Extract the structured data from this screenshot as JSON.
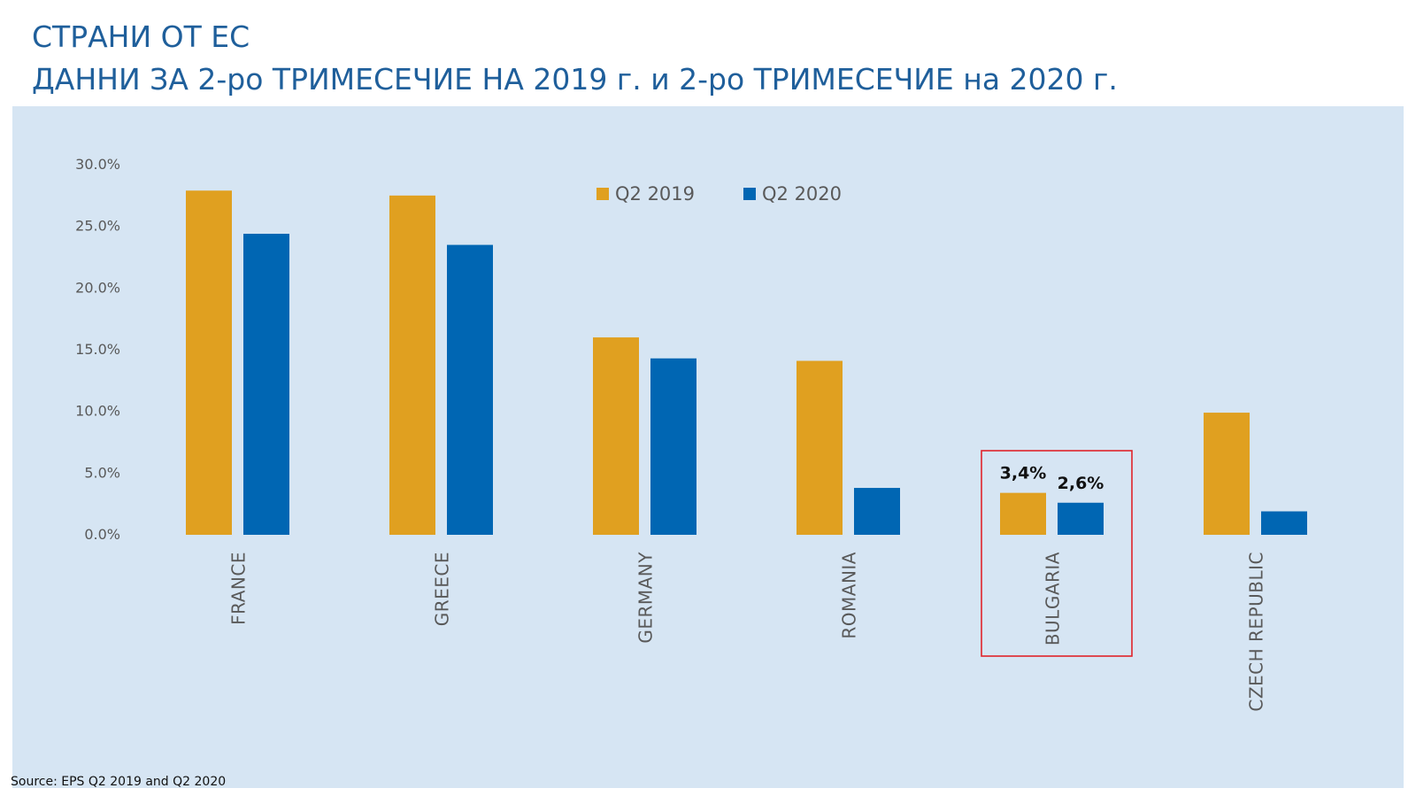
{
  "header": {
    "title_line_1": "СТРАНИ ОТ ЕС",
    "title_line_2": "ДАННИ ЗА 2-ро ТРИМЕСЕЧИЕ НА 2019 г. и 2-ро ТРИМЕСЕЧИЕ на 2020 г."
  },
  "footer": {
    "source": "Source: EPS Q2 2019 and Q2 2020"
  },
  "colors": {
    "title": "#1f5f9b",
    "panel_background": "#d6e5f3",
    "series_q2_2019": "#e0a020",
    "series_q2_2020": "#0066b3",
    "highlight_box": "#e0242a"
  },
  "chart_data": {
    "type": "bar",
    "categories": [
      "FRANCE",
      "GREECE",
      "GERMANY",
      "ROMANIA",
      "BULGARIA",
      "CZECH REPUBLIC"
    ],
    "series": [
      {
        "name": "Q2 2019",
        "color": "#e0a020",
        "values": [
          27.9,
          27.5,
          16.0,
          14.1,
          3.4,
          9.9
        ]
      },
      {
        "name": "Q2 2020",
        "color": "#0066b3",
        "values": [
          24.4,
          23.5,
          14.3,
          3.8,
          2.6,
          1.9
        ]
      }
    ],
    "yticks": [
      "0.0%",
      "5.0%",
      "10.0%",
      "15.0%",
      "20.0%",
      "25.0%",
      "30.0%"
    ],
    "ylim": [
      0,
      30
    ],
    "grid": false,
    "legend_position": "top-center",
    "annotations": [
      {
        "category": "BULGARIA",
        "series": "Q2 2019",
        "text": "3,4%"
      },
      {
        "category": "BULGARIA",
        "series": "Q2 2020",
        "text": "2,6%"
      }
    ],
    "highlighted_category": "BULGARIA"
  }
}
